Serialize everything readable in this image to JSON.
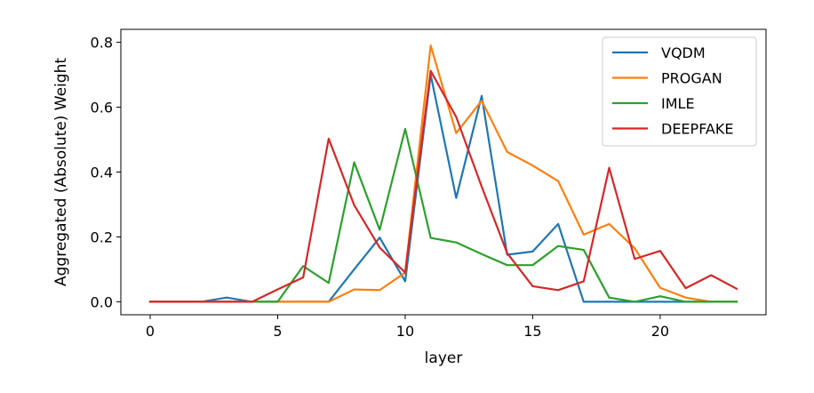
{
  "chart_data": {
    "type": "line",
    "xlabel": "layer",
    "ylabel": "Aggregated (Absolute) Weight",
    "xlim": [
      -1.15,
      24.15
    ],
    "ylim": [
      -0.04,
      0.84
    ],
    "xticks": [
      0,
      5,
      10,
      15,
      20
    ],
    "yticks": [
      0.0,
      0.2,
      0.4,
      0.6,
      0.8
    ],
    "xtick_labels": [
      "0",
      "5",
      "10",
      "15",
      "20"
    ],
    "ytick_labels": [
      "0.0",
      "0.2",
      "0.4",
      "0.6",
      "0.8"
    ],
    "grid": false,
    "legend_position": "top-right",
    "x": [
      0,
      1,
      2,
      3,
      4,
      5,
      6,
      7,
      8,
      9,
      10,
      11,
      12,
      13,
      14,
      15,
      16,
      17,
      18,
      19,
      20,
      21,
      22,
      23
    ],
    "series": [
      {
        "name": "VQDM",
        "color": "#1f77b4",
        "values": [
          0,
          0,
          0,
          0.013,
          0,
          0,
          0,
          0,
          0.1,
          0.198,
          0.063,
          0.7,
          0.32,
          0.635,
          0.145,
          0.155,
          0.24,
          0,
          0,
          0,
          0,
          0,
          0,
          0
        ]
      },
      {
        "name": "PROGAN",
        "color": "#ff7f0e",
        "values": [
          0,
          0,
          0,
          0,
          0,
          0,
          0,
          0,
          0.038,
          0.036,
          0.09,
          0.79,
          0.52,
          0.62,
          0.462,
          0.42,
          0.372,
          0.207,
          0.24,
          0.165,
          0.043,
          0.013,
          0,
          0
        ]
      },
      {
        "name": "IMLE",
        "color": "#2ca02c",
        "values": [
          0,
          0,
          0,
          0,
          0,
          0,
          0.11,
          0.058,
          0.43,
          0.222,
          0.533,
          0.197,
          0.183,
          0.147,
          0.113,
          0.113,
          0.172,
          0.16,
          0.013,
          0,
          0.017,
          0,
          0,
          0
        ]
      },
      {
        "name": "DEEPFAKE",
        "color": "#d62728",
        "values": [
          0,
          0,
          0,
          0,
          0,
          0.038,
          0.075,
          0.503,
          0.298,
          0.167,
          0.09,
          0.712,
          0.57,
          0.355,
          0.15,
          0.048,
          0.036,
          0.063,
          0.413,
          0.132,
          0.157,
          0.042,
          0.082,
          0.04
        ]
      }
    ]
  }
}
